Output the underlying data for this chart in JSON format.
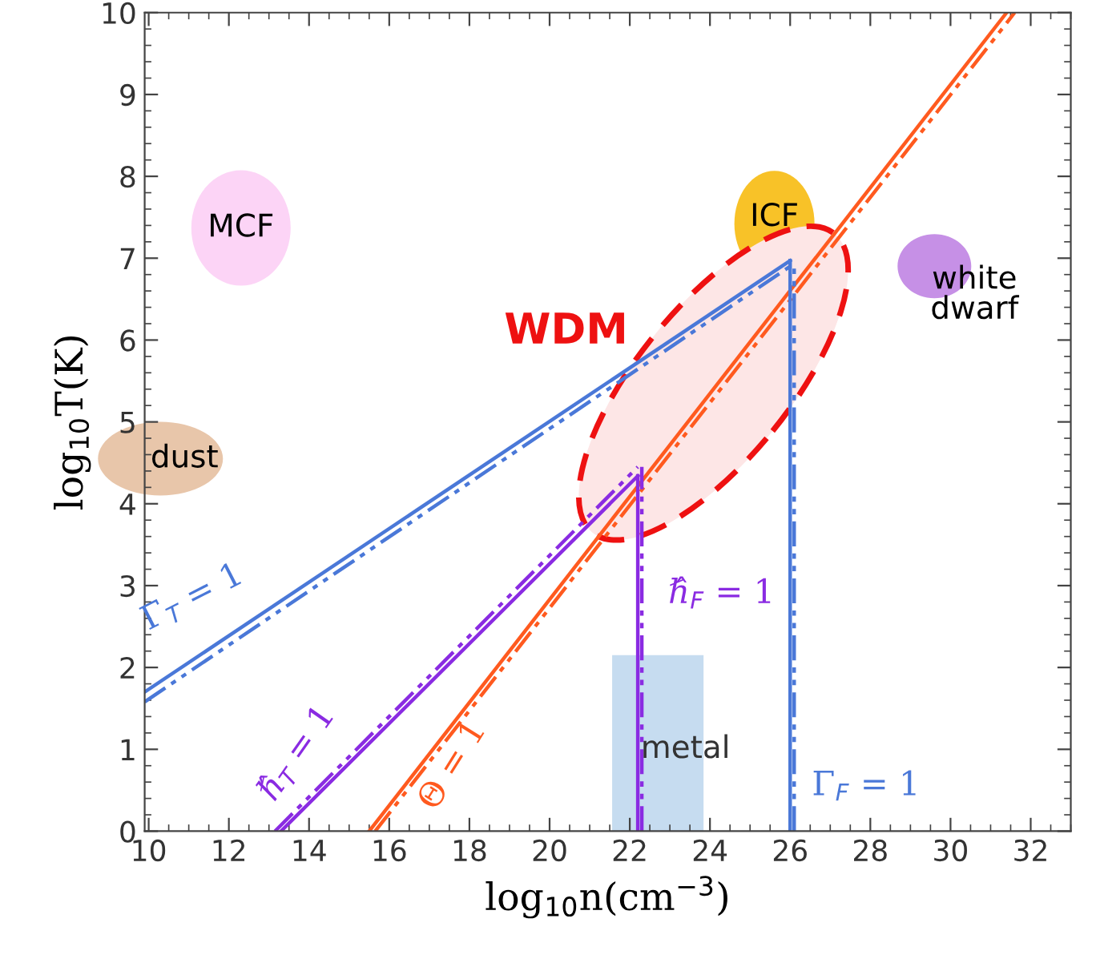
{
  "chart_data": {
    "type": "line",
    "xlabel": "log$_{10}$n(cm$^{−3}$)",
    "ylabel": "log$_{10}$T(K)",
    "xlim": [
      9.9,
      33
    ],
    "ylim": [
      0,
      10
    ],
    "xticks": [
      10,
      12,
      14,
      16,
      18,
      20,
      22,
      24,
      26,
      28,
      30,
      32
    ],
    "yticks": [
      0,
      1,
      2,
      3,
      4,
      5,
      6,
      7,
      8,
      9,
      10
    ],
    "grid": false,
    "legend": false,
    "marker": "none",
    "series": [
      {
        "type": "area",
        "color": "#c6dcf0",
        "x": [
          21.56,
          23.84
        ],
        "values": [
          2.15,
          2.15
        ]
      },
      {
        "color": "#4a78d8",
        "line_style": "solid",
        "x": [
          9.9,
          26
        ],
        "values": [
          1.7,
          6.97
        ]
      },
      {
        "color": "#4a78d8",
        "line_style": "dashdot",
        "x": [
          9.9,
          26
        ],
        "values": [
          1.58,
          6.9
        ]
      },
      {
        "color": "#8a2be2",
        "line_style": "solid",
        "x": [
          13.3,
          22.2
        ],
        "values": [
          0,
          4.34
        ]
      },
      {
        "color": "#8a2be2",
        "line_style": "dashdot",
        "x": [
          13.15,
          22.2
        ],
        "values": [
          0,
          4.45
        ]
      },
      {
        "color": "#ff5a1f",
        "line_style": "solid",
        "x": [
          15.5,
          31.4
        ],
        "values": [
          0,
          10
        ]
      },
      {
        "color": "#ff5a1f",
        "line_style": "dashdot",
        "x": [
          15.65,
          31.6
        ],
        "values": [
          0,
          10
        ]
      },
      {
        "color": "#8a2be2",
        "line_style": "solid",
        "x": [
          22.2,
          22.2
        ],
        "values": [
          0,
          4.34
        ]
      },
      {
        "color": "#8a2be2",
        "line_style": "dashdot",
        "x": [
          22.3,
          22.3
        ],
        "values": [
          0,
          4.45
        ]
      },
      {
        "color": "#4a78d8",
        "line_style": "solid",
        "x": [
          26,
          26
        ],
        "values": [
          0,
          6.97
        ]
      },
      {
        "color": "#4a78d8",
        "line_style": "dashdot",
        "x": [
          26.1,
          26.1
        ],
        "values": [
          0,
          6.9
        ]
      }
    ],
    "annotations": [
      "MCF",
      "ICF",
      "white\ndwarf",
      "dust",
      "WDM",
      "metal",
      "Γ$_{T}$ = 1",
      "ℏ̂$_{T}$ = 1",
      "Θ = 1",
      "ℏ̂$_{F}$ = 1",
      "Γ$_{F}$ = 1"
    ]
  }
}
